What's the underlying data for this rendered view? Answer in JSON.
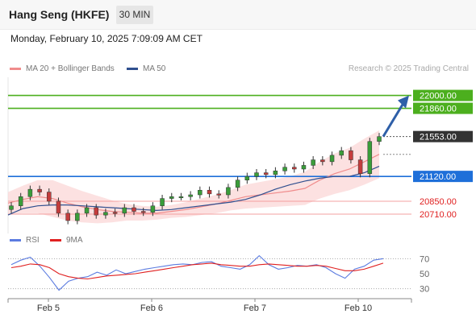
{
  "header": {
    "title": "Hang Seng (HKFE)",
    "timeframe": "30 MIN",
    "datetime": "Monday, February 10, 2025 7:09:09 AM CET"
  },
  "legend": {
    "items": [
      {
        "label": "MA 20 + Bollinger Bands",
        "color": "#f08c8c"
      },
      {
        "label": "MA 50",
        "color": "#2f4f8f"
      }
    ],
    "credit": "Research © 2025 Trading Central"
  },
  "chart_data": [
    {
      "type": "line",
      "chart": "price",
      "x_ticks": [
        "Feb 5",
        "Feb 6",
        "Feb 7",
        "Feb 10"
      ],
      "price_labels": [
        {
          "value": 22000.0,
          "label": "22000.00",
          "style": "target",
          "color": "#4caf1e"
        },
        {
          "value": 21860.0,
          "label": "21860.00",
          "style": "target",
          "color": "#4caf1e"
        },
        {
          "value": 21553.0,
          "label": "21553.00",
          "style": "last",
          "color": "#333333"
        },
        {
          "value": 21120.0,
          "label": "21120.00",
          "style": "pivot",
          "color": "#1e6fd9"
        },
        {
          "value": 20850.0,
          "label": "20850.00",
          "style": "support",
          "color": "#e02020"
        },
        {
          "value": 20710.0,
          "label": "20710.00",
          "style": "support",
          "color": "#e02020"
        }
      ],
      "ylim": [
        20500,
        22180
      ],
      "series": [
        {
          "name": "MA 20 + Bollinger Bands",
          "color": "#f08c8c",
          "values": [
            20830,
            20870,
            20900,
            20880,
            20830,
            20790,
            20760,
            20740,
            20730,
            20720,
            20720,
            20740,
            20760,
            20790,
            20820,
            20860,
            20900,
            20920,
            20940,
            20960,
            20990,
            21080,
            21150,
            21200,
            21280,
            21360
          ]
        },
        {
          "name": "MA 50",
          "color": "#2f4f8f",
          "values": [
            20700,
            20770,
            20800,
            20810,
            20810,
            20800,
            20790,
            20780,
            20770,
            20760,
            20750,
            20760,
            20780,
            20800,
            20820,
            20840,
            20870,
            20920,
            20980,
            21030,
            21070,
            21100,
            21120,
            21120,
            21160,
            21230
          ]
        }
      ],
      "candles_close": [
        20800,
        20900,
        20980,
        20950,
        20850,
        20720,
        20640,
        20720,
        20780,
        20700,
        20730,
        20720,
        20780,
        20740,
        20730,
        20800,
        20880,
        20900,
        20900,
        20920,
        20970,
        20930,
        20920,
        21000,
        21080,
        21120,
        21160,
        21140,
        21180,
        21220,
        21200,
        21240,
        21300,
        21280,
        21350,
        21400,
        21300,
        21150,
        21500,
        21553
      ]
    },
    {
      "type": "line",
      "chart": "rsi",
      "legend": [
        {
          "name": "RSI",
          "color": "#5b7be0"
        },
        {
          "name": "9MA",
          "color": "#e02020"
        }
      ],
      "y_ticks": [
        70,
        50,
        30
      ],
      "ylim": [
        20,
        80
      ],
      "series": [
        {
          "name": "RSI",
          "values": [
            62,
            68,
            72,
            60,
            45,
            28,
            40,
            44,
            46,
            52,
            48,
            55,
            50,
            53,
            56,
            58,
            60,
            62,
            63,
            62,
            65,
            66,
            60,
            58,
            56,
            62,
            74,
            62,
            56,
            58,
            61,
            60,
            62,
            58,
            50,
            44,
            56,
            60,
            68,
            70
          ]
        },
        {
          "name": "9MA",
          "values": [
            58,
            60,
            63,
            62,
            58,
            50,
            46,
            44,
            43,
            45,
            47,
            48,
            49,
            50,
            52,
            54,
            56,
            58,
            60,
            62,
            63,
            64,
            62,
            61,
            60,
            60,
            62,
            63,
            62,
            61,
            60,
            60,
            61,
            60,
            57,
            54,
            54,
            56,
            60,
            64
          ]
        }
      ]
    }
  ]
}
